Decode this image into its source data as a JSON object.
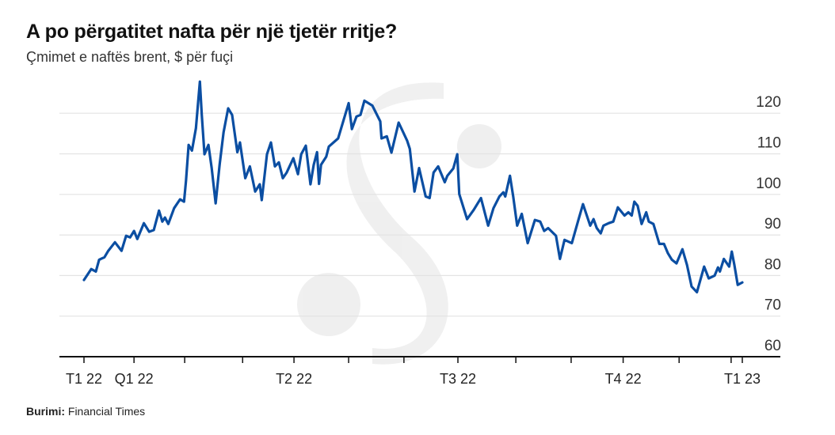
{
  "header": {
    "title": "A po përgatitet nafta për një tjetër rritje?",
    "subtitle": "Çmimet e naftës brent, $ për fuçi"
  },
  "footer": {
    "source_label": "Burimi:",
    "source_value": "Financial Times"
  },
  "colors": {
    "line": "#0b4ea2",
    "grid": "#e3e3e3",
    "axis": "#111111"
  },
  "chart_data": {
    "type": "line",
    "title": "A po përgatitet nafta për një tjetër rritje?",
    "ylabel": "Çmimet e naftës brent, $ për fuçi",
    "xlabel": "",
    "ylim": [
      60,
      120
    ],
    "yticks": [
      60,
      70,
      80,
      90,
      100,
      110,
      120
    ],
    "y_axis_side": "right",
    "grid": "horizontal",
    "xlim": [
      2021.96,
      2023.06
    ],
    "xticks": [
      {
        "x": 2022.0,
        "label": "T1 22"
      },
      {
        "x": 2022.076,
        "label": "Q1 22"
      },
      {
        "x": 2022.153,
        "label": ""
      },
      {
        "x": 2022.241,
        "label": ""
      },
      {
        "x": 2022.319,
        "label": "T2 22"
      },
      {
        "x": 2022.402,
        "label": ""
      },
      {
        "x": 2022.486,
        "label": ""
      },
      {
        "x": 2022.568,
        "label": "T3 22"
      },
      {
        "x": 2022.656,
        "label": ""
      },
      {
        "x": 2022.74,
        "label": ""
      },
      {
        "x": 2022.819,
        "label": "T4 22"
      },
      {
        "x": 2022.904,
        "label": ""
      },
      {
        "x": 2022.983,
        "label": ""
      },
      {
        "x": 2023.0,
        "label": "T1 23"
      }
    ],
    "series": [
      {
        "x": [
          2022.0,
          2022.011,
          2022.018,
          2022.023,
          2022.031,
          2022.037,
          2022.047,
          2022.057,
          2022.064,
          2022.07,
          2022.076,
          2022.081,
          2022.091,
          2022.099,
          2022.106,
          2022.114,
          2022.119,
          2022.123,
          2022.128,
          2022.137,
          2022.146,
          2022.152,
          2022.155,
          2022.159,
          2022.164,
          2022.17,
          2022.176,
          2022.179,
          2022.183,
          2022.189,
          2022.194,
          2022.2,
          2022.206,
          2022.212,
          2022.219,
          2022.225,
          2022.233,
          2022.237,
          2022.245,
          2022.252,
          2022.26,
          2022.267,
          2022.27,
          2022.278,
          2022.284,
          2022.29,
          2022.296,
          2022.302,
          2022.308,
          2022.318,
          2022.325,
          2022.33,
          2022.337,
          2022.344,
          2022.349,
          2022.354,
          2022.357,
          2022.36,
          2022.368,
          2022.372,
          2022.386,
          2022.402,
          2022.407,
          2022.414,
          2022.42,
          2022.426,
          2022.438,
          2022.45,
          2022.452,
          2022.46,
          2022.467,
          2022.478,
          2022.491,
          2022.495,
          2022.502,
          2022.509,
          2022.519,
          2022.525,
          2022.531,
          2022.538,
          2022.548,
          2022.552,
          2022.561,
          2022.567,
          2022.57,
          2022.582,
          2022.592,
          2022.603,
          2022.614,
          2022.622,
          2022.631,
          2022.637,
          2022.64,
          2022.647,
          2022.652,
          2022.658,
          2022.665,
          2022.674,
          2022.685,
          2022.693,
          2022.699,
          2022.705,
          2022.717,
          2022.723,
          2022.73,
          2022.741,
          2022.751,
          2022.758,
          2022.769,
          2022.774,
          2022.779,
          2022.785,
          2022.789,
          2022.797,
          2022.804,
          2022.811,
          2022.821,
          2022.827,
          2022.832,
          2022.836,
          2022.841,
          2022.847,
          2022.854,
          2022.858,
          2022.865,
          2022.874,
          2022.881,
          2022.887,
          2022.893,
          2022.9,
          2022.909,
          2022.916,
          2022.923,
          2022.931,
          2022.942,
          2022.949,
          2022.958,
          2022.963,
          2022.966,
          2022.972,
          2022.98,
          2022.984,
          2022.988,
          2022.993,
          2023.0
        ],
        "y": [
          78.9,
          81.6,
          81.0,
          83.9,
          84.5,
          86.1,
          88.2,
          86.1,
          89.8,
          89.4,
          91.0,
          89.0,
          92.9,
          90.8,
          91.2,
          96.0,
          93.3,
          94.3,
          92.7,
          96.6,
          98.8,
          98.2,
          103.4,
          112.2,
          110.8,
          116.3,
          127.8,
          119.6,
          109.9,
          112.2,
          106.5,
          97.8,
          107.3,
          115.3,
          121.2,
          119.6,
          110.4,
          112.8,
          104.0,
          106.9,
          100.7,
          102.5,
          98.6,
          109.9,
          112.8,
          106.9,
          107.9,
          104.0,
          105.4,
          108.9,
          105.0,
          109.9,
          112.0,
          102.5,
          107.3,
          110.4,
          102.6,
          107.3,
          109.3,
          111.8,
          113.8,
          122.5,
          116.1,
          119.2,
          119.6,
          123.1,
          121.9,
          118.0,
          113.8,
          114.3,
          110.3,
          117.7,
          113.2,
          111.2,
          100.7,
          106.5,
          99.5,
          99.1,
          105.4,
          106.9,
          103.0,
          104.6,
          106.4,
          109.9,
          100.1,
          93.9,
          96.2,
          99.1,
          92.3,
          96.6,
          99.5,
          100.5,
          99.5,
          104.6,
          99.5,
          92.3,
          95.2,
          88.0,
          93.7,
          93.3,
          91.0,
          91.7,
          89.8,
          84.1,
          88.8,
          88.0,
          93.7,
          97.6,
          92.3,
          93.9,
          91.7,
          90.4,
          92.3,
          92.9,
          93.3,
          96.8,
          94.8,
          95.6,
          94.8,
          98.2,
          97.2,
          92.7,
          95.6,
          93.3,
          92.7,
          87.8,
          87.8,
          85.5,
          83.9,
          83.0,
          86.5,
          82.6,
          77.3,
          75.9,
          82.2,
          79.3,
          80.0,
          82.0,
          81.0,
          84.1,
          82.2,
          85.9,
          82.6,
          77.7,
          78.3
        ]
      }
    ]
  }
}
